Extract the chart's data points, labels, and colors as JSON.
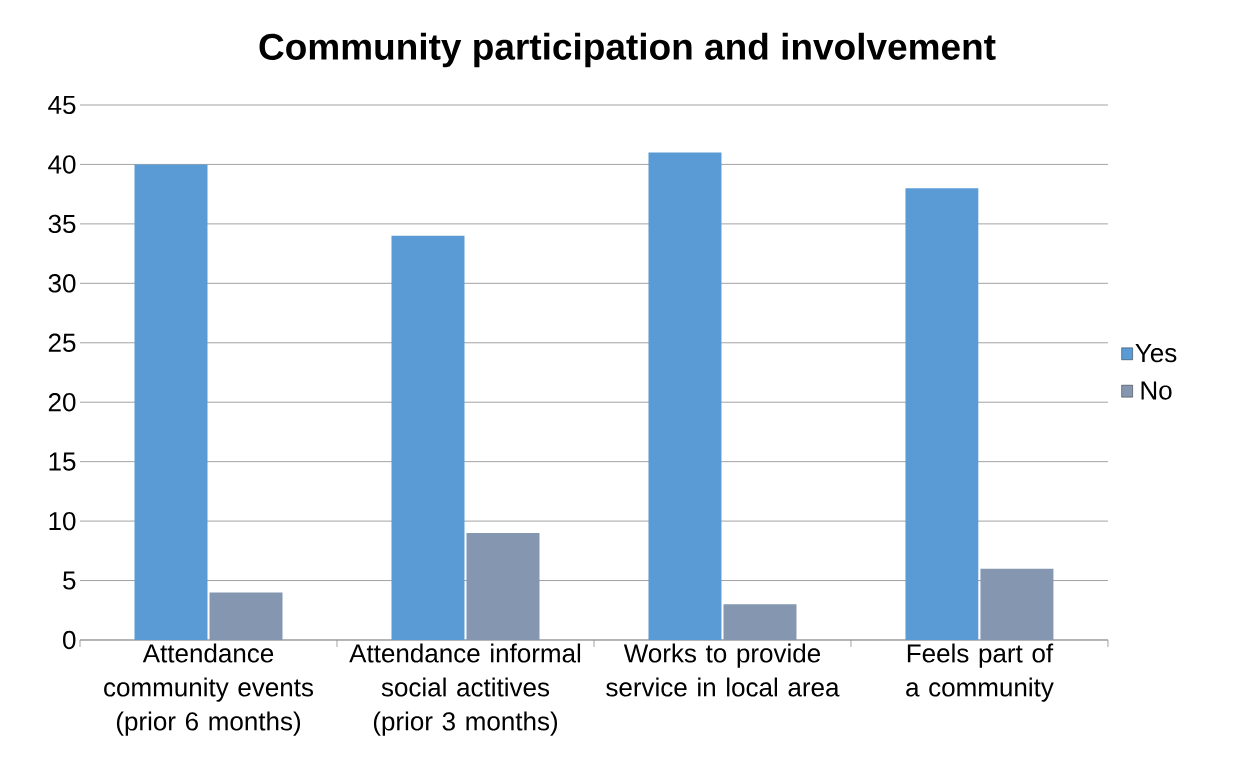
{
  "chart_data": {
    "type": "bar",
    "title": "Community participation and involvement",
    "categories": [
      "Attendance community events (prior 6 months)",
      "Attendance informal social actitives (prior 3 months)",
      "Works to provide service in local area",
      "Feels part of a community"
    ],
    "series": [
      {
        "name": "Yes",
        "color": "#5b9bd5",
        "values": [
          40,
          34,
          41,
          38
        ]
      },
      {
        "name": "No",
        "color": "#8496b0",
        "values": [
          4,
          9,
          3,
          6
        ]
      }
    ],
    "ylim": [
      0,
      45
    ],
    "yticks": [
      0,
      5,
      10,
      15,
      20,
      25,
      30,
      35,
      40,
      45
    ],
    "grid": "y",
    "legend": "right"
  }
}
